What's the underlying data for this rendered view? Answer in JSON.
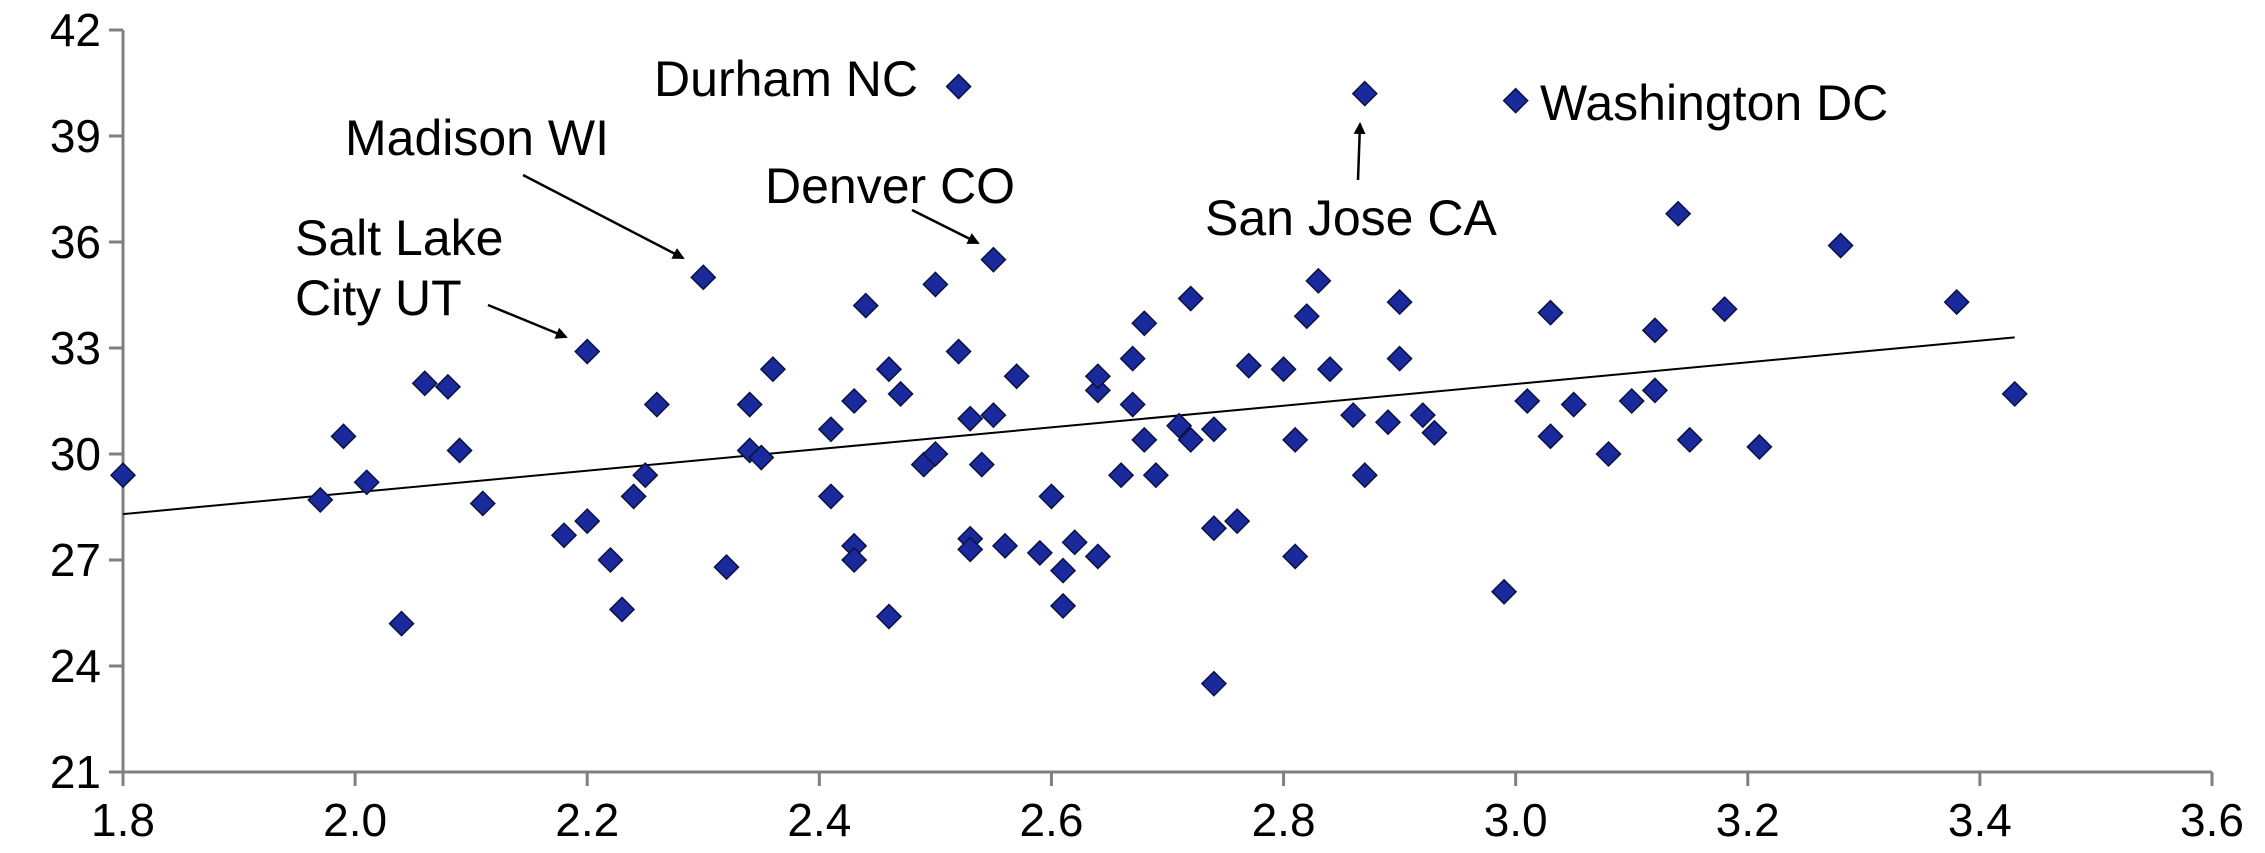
{
  "chart_data": {
    "type": "scatter",
    "title": "",
    "xlabel": "",
    "ylabel": "",
    "xlim": [
      1.8,
      3.6
    ],
    "ylim": [
      21,
      42
    ],
    "xticks": [
      "1.8",
      "2.0",
      "2.2",
      "2.4",
      "2.6",
      "2.8",
      "3.0",
      "3.2",
      "3.4",
      "3.6"
    ],
    "yticks": [
      "21",
      "24",
      "27",
      "30",
      "33",
      "36",
      "39",
      "42"
    ],
    "grid": false,
    "legend": "none",
    "point_color": "#1a2a9c",
    "trendline": {
      "x": [
        1.8,
        3.43
      ],
      "y": [
        28.3,
        33.3
      ]
    },
    "points": [
      {
        "x": 1.8,
        "y": 29.4
      },
      {
        "x": 1.97,
        "y": 28.7
      },
      {
        "x": 1.99,
        "y": 30.5
      },
      {
        "x": 2.01,
        "y": 29.2
      },
      {
        "x": 2.04,
        "y": 25.2
      },
      {
        "x": 2.06,
        "y": 32.0
      },
      {
        "x": 2.08,
        "y": 31.9
      },
      {
        "x": 2.09,
        "y": 30.1
      },
      {
        "x": 2.11,
        "y": 28.6
      },
      {
        "x": 2.18,
        "y": 27.7
      },
      {
        "x": 2.2,
        "y": 28.1
      },
      {
        "x": 2.2,
        "y": 32.9
      },
      {
        "x": 2.22,
        "y": 27.0
      },
      {
        "x": 2.23,
        "y": 25.6
      },
      {
        "x": 2.24,
        "y": 28.8
      },
      {
        "x": 2.25,
        "y": 29.4
      },
      {
        "x": 2.26,
        "y": 31.4
      },
      {
        "x": 2.3,
        "y": 35.0
      },
      {
        "x": 2.32,
        "y": 26.8
      },
      {
        "x": 2.34,
        "y": 30.1
      },
      {
        "x": 2.34,
        "y": 31.4
      },
      {
        "x": 2.35,
        "y": 29.9
      },
      {
        "x": 2.36,
        "y": 32.4
      },
      {
        "x": 2.41,
        "y": 28.8
      },
      {
        "x": 2.41,
        "y": 30.7
      },
      {
        "x": 2.43,
        "y": 27.4
      },
      {
        "x": 2.43,
        "y": 27.0
      },
      {
        "x": 2.43,
        "y": 31.5
      },
      {
        "x": 2.44,
        "y": 34.2
      },
      {
        "x": 2.46,
        "y": 32.4
      },
      {
        "x": 2.46,
        "y": 25.4
      },
      {
        "x": 2.47,
        "y": 31.7
      },
      {
        "x": 2.49,
        "y": 29.7
      },
      {
        "x": 2.5,
        "y": 30.0
      },
      {
        "x": 2.5,
        "y": 34.8
      },
      {
        "x": 2.52,
        "y": 32.9
      },
      {
        "x": 2.52,
        "y": 40.4
      },
      {
        "x": 2.53,
        "y": 27.6
      },
      {
        "x": 2.53,
        "y": 27.3
      },
      {
        "x": 2.53,
        "y": 31.0
      },
      {
        "x": 2.54,
        "y": 29.7
      },
      {
        "x": 2.55,
        "y": 31.1
      },
      {
        "x": 2.55,
        "y": 35.5
      },
      {
        "x": 2.56,
        "y": 27.4
      },
      {
        "x": 2.57,
        "y": 32.2
      },
      {
        "x": 2.59,
        "y": 27.2
      },
      {
        "x": 2.6,
        "y": 28.8
      },
      {
        "x": 2.61,
        "y": 26.7
      },
      {
        "x": 2.61,
        "y": 25.7
      },
      {
        "x": 2.62,
        "y": 27.5
      },
      {
        "x": 2.64,
        "y": 31.8
      },
      {
        "x": 2.64,
        "y": 32.2
      },
      {
        "x": 2.64,
        "y": 27.1
      },
      {
        "x": 2.66,
        "y": 29.4
      },
      {
        "x": 2.67,
        "y": 32.7
      },
      {
        "x": 2.67,
        "y": 31.4
      },
      {
        "x": 2.68,
        "y": 33.7
      },
      {
        "x": 2.68,
        "y": 30.4
      },
      {
        "x": 2.69,
        "y": 29.4
      },
      {
        "x": 2.71,
        "y": 30.8
      },
      {
        "x": 2.72,
        "y": 30.4
      },
      {
        "x": 2.72,
        "y": 34.4
      },
      {
        "x": 2.74,
        "y": 30.7
      },
      {
        "x": 2.74,
        "y": 27.9
      },
      {
        "x": 2.74,
        "y": 23.5
      },
      {
        "x": 2.76,
        "y": 28.1
      },
      {
        "x": 2.77,
        "y": 32.5
      },
      {
        "x": 2.8,
        "y": 32.4
      },
      {
        "x": 2.81,
        "y": 30.4
      },
      {
        "x": 2.81,
        "y": 27.1
      },
      {
        "x": 2.82,
        "y": 33.9
      },
      {
        "x": 2.83,
        "y": 34.9
      },
      {
        "x": 2.84,
        "y": 32.4
      },
      {
        "x": 2.86,
        "y": 31.1
      },
      {
        "x": 2.87,
        "y": 40.2
      },
      {
        "x": 2.87,
        "y": 29.4
      },
      {
        "x": 2.89,
        "y": 30.9
      },
      {
        "x": 2.9,
        "y": 32.7
      },
      {
        "x": 2.9,
        "y": 34.3
      },
      {
        "x": 2.92,
        "y": 31.1
      },
      {
        "x": 2.93,
        "y": 30.6
      },
      {
        "x": 2.99,
        "y": 26.1
      },
      {
        "x": 3.0,
        "y": 40.0
      },
      {
        "x": 3.01,
        "y": 31.5
      },
      {
        "x": 3.03,
        "y": 34.0
      },
      {
        "x": 3.03,
        "y": 30.5
      },
      {
        "x": 3.05,
        "y": 31.4
      },
      {
        "x": 3.08,
        "y": 30.0
      },
      {
        "x": 3.1,
        "y": 31.5
      },
      {
        "x": 3.12,
        "y": 31.8
      },
      {
        "x": 3.12,
        "y": 33.5
      },
      {
        "x": 3.14,
        "y": 36.8
      },
      {
        "x": 3.15,
        "y": 30.4
      },
      {
        "x": 3.18,
        "y": 34.1
      },
      {
        "x": 3.21,
        "y": 30.2
      },
      {
        "x": 3.28,
        "y": 35.9
      },
      {
        "x": 3.38,
        "y": 34.3
      },
      {
        "x": 3.43,
        "y": 31.7
      }
    ],
    "annotations": [
      {
        "lines": [
          "Durham NC"
        ],
        "x": 2.52,
        "y": 40.4
      },
      {
        "lines": [
          "Washington DC"
        ],
        "x": 3.0,
        "y": 40.0
      },
      {
        "lines": [
          "Madison WI"
        ],
        "x": 2.3,
        "y": 35.0
      },
      {
        "lines": [
          "Denver CO"
        ],
        "x": 2.55,
        "y": 35.5
      },
      {
        "lines": [
          "San Jose CA"
        ],
        "x": 2.87,
        "y": 40.2
      },
      {
        "lines": [
          "Salt Lake",
          "City UT"
        ],
        "x": 2.2,
        "y": 32.9
      }
    ]
  }
}
